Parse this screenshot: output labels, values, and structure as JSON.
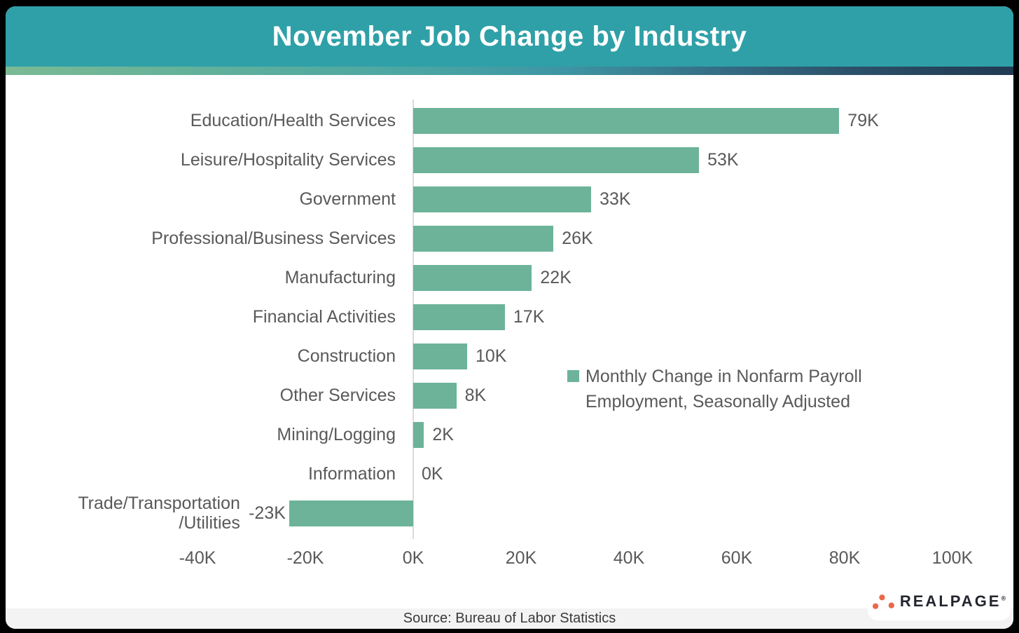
{
  "header": {
    "title": "November Job Change by Industry"
  },
  "footer": {
    "source": "Source: Bureau of Labor Statistics"
  },
  "branding": {
    "name": "REALPAGE",
    "trademark": "®",
    "dots_color": "#E8694B",
    "text_color": "#23262F"
  },
  "colors": {
    "canvas_bg": "#000000",
    "card_bg": "#FFFFFF",
    "header_bg": "#2FA0A8",
    "title_text": "#FFFFFF",
    "bar": "#6CB399",
    "label_text": "#595959",
    "axis_line": "#DBDBDB",
    "footer_bg": "#F3F3F3",
    "source_text": "#3A3A3A",
    "accent_gradient": [
      "#7BBA94",
      "#4BA6A3",
      "#346A82",
      "#213A52"
    ]
  },
  "chart_data": {
    "type": "bar",
    "orientation": "horizontal",
    "title": "November Job Change by Industry",
    "categories": [
      "Education/Health Services",
      "Leisure/Hospitality Services",
      "Government",
      "Professional/Business Services",
      "Manufacturing",
      "Financial Activities",
      "Construction",
      "Other Services",
      "Mining/Logging",
      "Information",
      "Trade/Transportation/Utilities"
    ],
    "values": [
      79,
      53,
      33,
      26,
      22,
      17,
      10,
      8,
      2,
      0,
      -23
    ],
    "value_labels": [
      "79K",
      "53K",
      "33K",
      "26K",
      "22K",
      "17K",
      "10K",
      "8K",
      "2K",
      "0K",
      "-23K"
    ],
    "xlabel": "",
    "ylabel": "",
    "xlim": [
      -40,
      100
    ],
    "x_ticks": [
      {
        "value": -40,
        "label": "-40K"
      },
      {
        "value": -20,
        "label": "-20K"
      },
      {
        "value": 0,
        "label": "0K"
      },
      {
        "value": 20,
        "label": "20K"
      },
      {
        "value": 40,
        "label": "40K"
      },
      {
        "value": 60,
        "label": "60K"
      },
      {
        "value": 80,
        "label": "80K"
      },
      {
        "value": 100,
        "label": "100K"
      }
    ],
    "grid": false,
    "bar_color": "#6CB399",
    "legend": {
      "label": "Monthly Change in Nonfarm Payroll Employment, Seasonally Adjusted",
      "position": "middle-right",
      "marker": "square"
    }
  }
}
